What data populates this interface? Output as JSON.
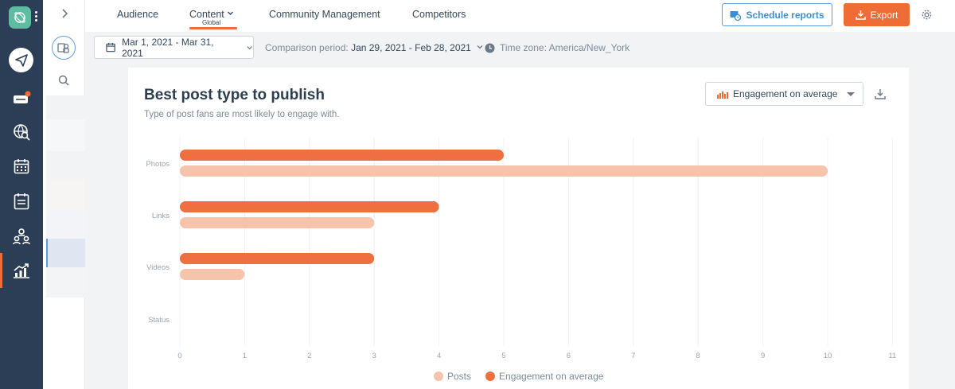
{
  "nav": {
    "tabs": [
      {
        "label": "Audience"
      },
      {
        "label": "Content",
        "sublabel": "Global"
      },
      {
        "label": "Community Management"
      },
      {
        "label": "Competitors"
      }
    ],
    "active_tab": "Content",
    "schedule_label": "Schedule reports",
    "export_label": "Export"
  },
  "filters": {
    "date_range": "Mar 1, 2021 - Mar 31, 2021",
    "comparison_label": "Comparison period:",
    "comparison_value": "Jan 29, 2021 - Feb 28, 2021",
    "timezone": "Time zone: America/New_York"
  },
  "card": {
    "title": "Best post type to publish",
    "subtitle": "Type of post fans are most likely to engage with.",
    "metric_select": "Engagement on average"
  },
  "colors": {
    "accent": "#ef6c35",
    "engagement": "#ee7040",
    "posts": "#f6c4ab",
    "sidebar": "#2c3e55"
  },
  "chart_data": {
    "type": "bar",
    "orientation": "horizontal",
    "categories": [
      "Photos",
      "Links",
      "Videos",
      "Status"
    ],
    "series": [
      {
        "name": "Engagement on average",
        "values": [
          5,
          4,
          3,
          0
        ]
      },
      {
        "name": "Posts",
        "values": [
          10,
          3,
          1,
          0
        ]
      }
    ],
    "xlim": [
      0,
      11
    ],
    "xticks": [
      "0",
      "1",
      "2",
      "3",
      "4",
      "5",
      "6",
      "7",
      "8",
      "9",
      "10",
      "11"
    ],
    "grid": true,
    "legend": [
      "Posts",
      "Engagement on average"
    ],
    "legend_position": "bottom"
  }
}
